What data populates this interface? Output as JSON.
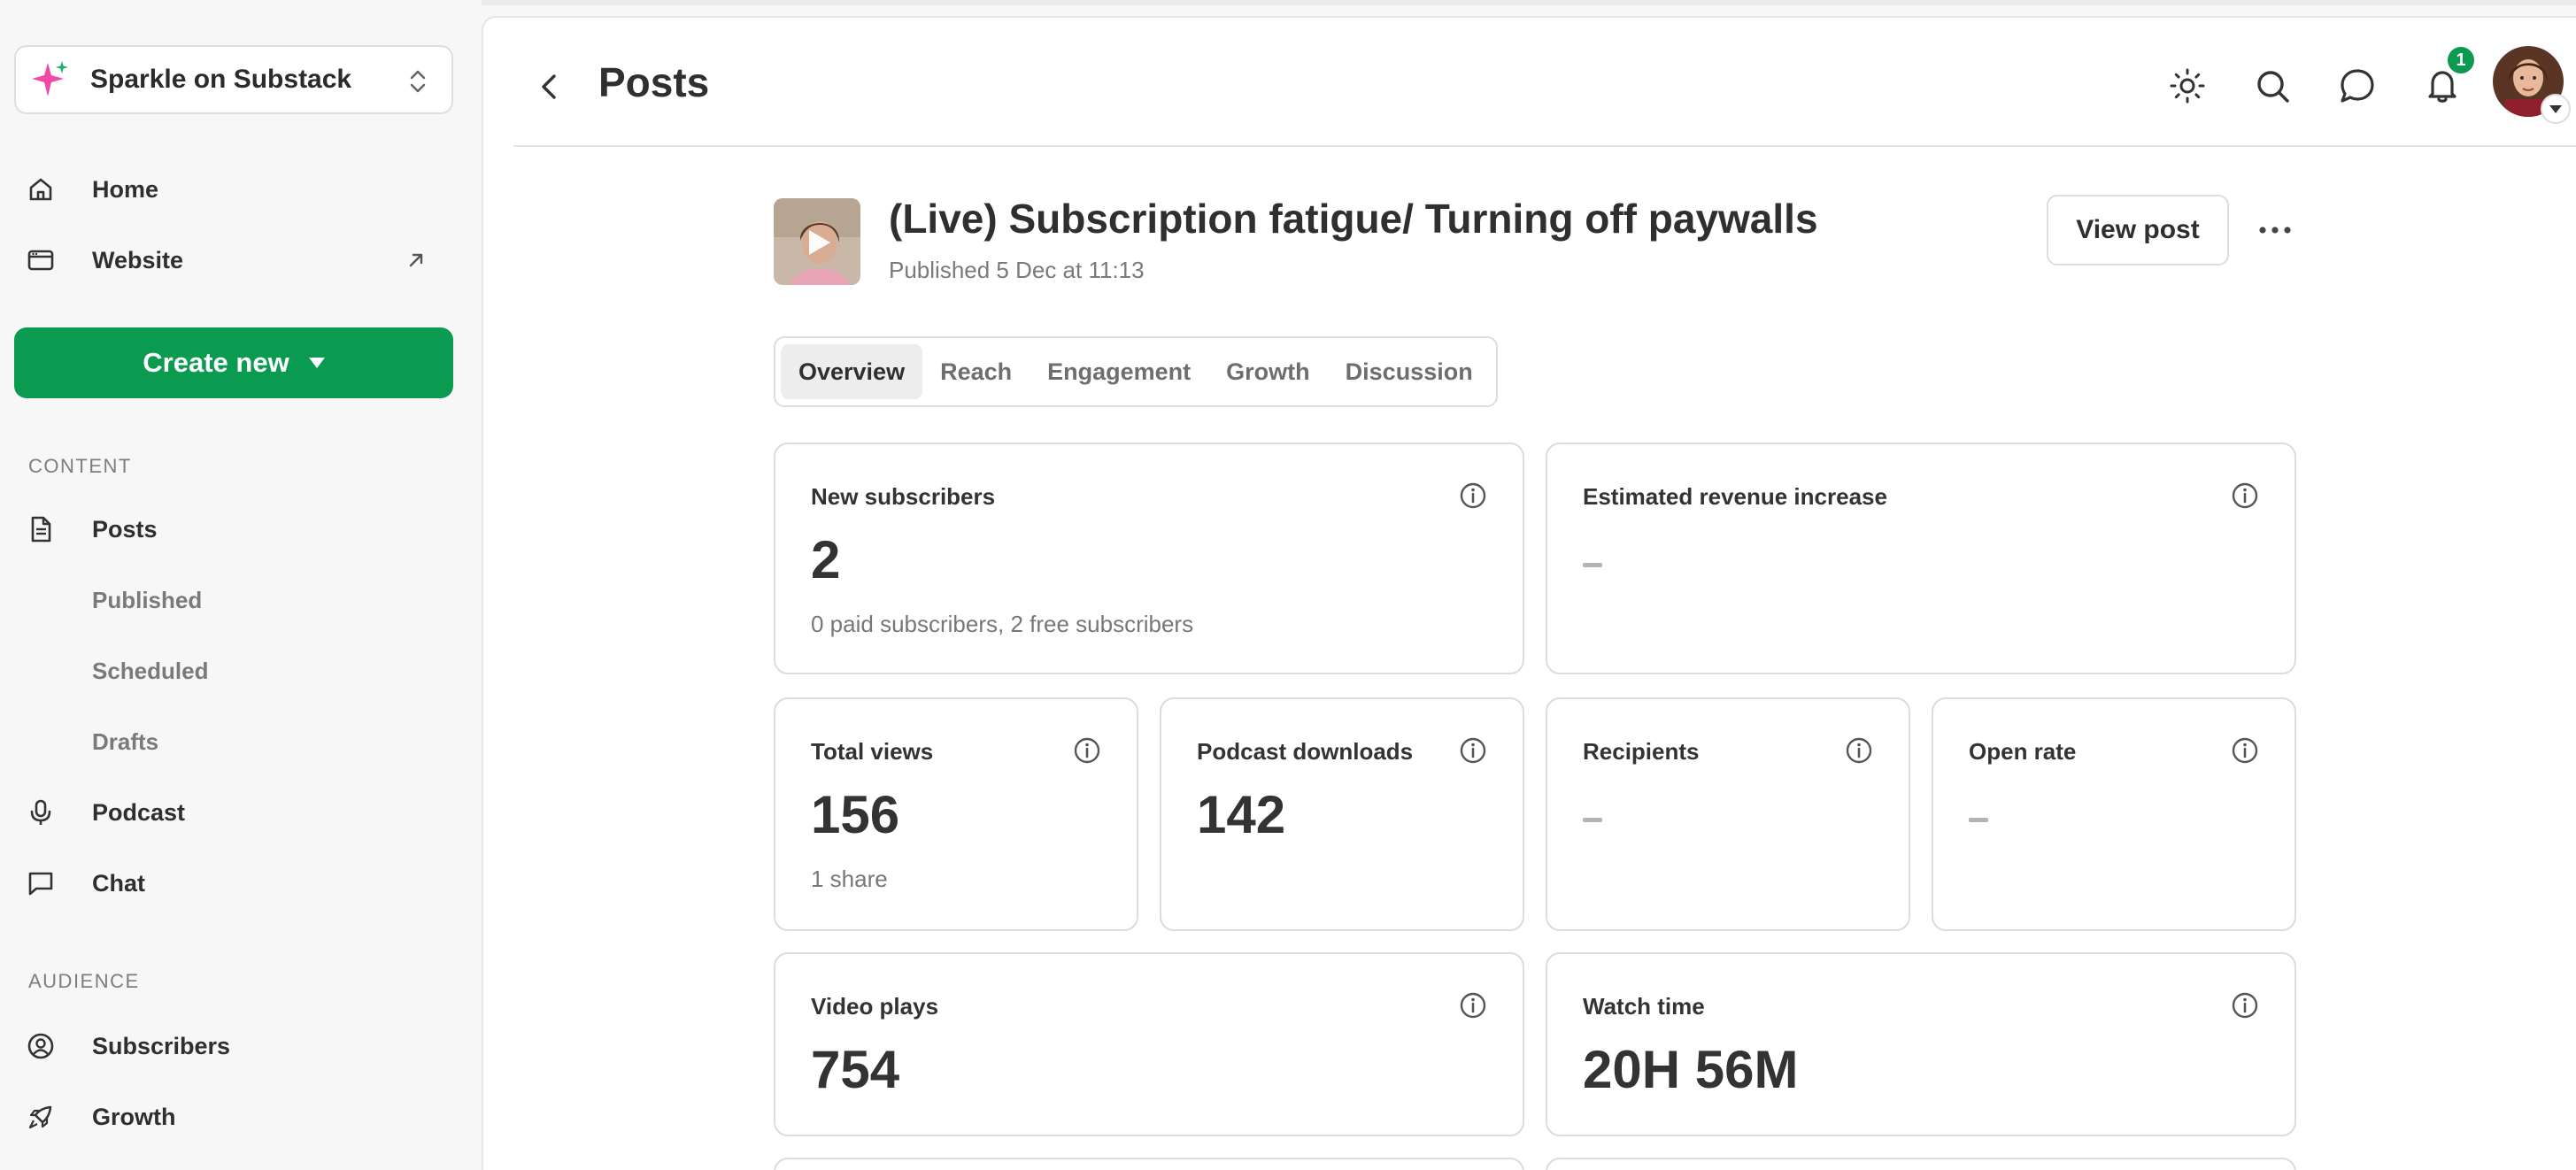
{
  "sidebar": {
    "publication": "Sparkle on Substack",
    "nav_top": [
      {
        "label": "Home",
        "icon": "home-icon"
      },
      {
        "label": "Website",
        "icon": "browser-window-icon"
      }
    ],
    "create_label": "Create new",
    "content_section": "CONTENT",
    "content_items": {
      "posts": "Posts",
      "published": "Published",
      "scheduled": "Scheduled",
      "drafts": "Drafts",
      "podcast": "Podcast",
      "chat": "Chat"
    },
    "audience_section": "AUDIENCE",
    "audience_items": {
      "subscribers": "Subscribers",
      "growth": "Growth"
    }
  },
  "header": {
    "title": "Posts",
    "notification_count": "1"
  },
  "post": {
    "title": "(Live) Subscription fatigue/ Turning off paywalls",
    "published": "Published 5 Dec at 11:13",
    "view_post_label": "View post"
  },
  "tabs": [
    "Overview",
    "Reach",
    "Engagement",
    "Growth",
    "Discussion"
  ],
  "stats": {
    "new_subscribers": {
      "label": "New subscribers",
      "value": "2",
      "sub": "0 paid subscribers, 2 free subscribers"
    },
    "revenue": {
      "label": "Estimated revenue increase"
    },
    "total_views": {
      "label": "Total views",
      "value": "156",
      "sub": "1 share"
    },
    "podcast_downloads": {
      "label": "Podcast downloads",
      "value": "142"
    },
    "recipients": {
      "label": "Recipients"
    },
    "open_rate": {
      "label": "Open rate"
    },
    "video_plays": {
      "label": "Video plays",
      "value": "754"
    },
    "watch_time": {
      "label": "Watch time",
      "value": "20H 56M"
    }
  },
  "colors": {
    "accent": "#0a9b50",
    "sparkle_pink": "#f04aa8",
    "sparkle_green": "#19b36b"
  }
}
